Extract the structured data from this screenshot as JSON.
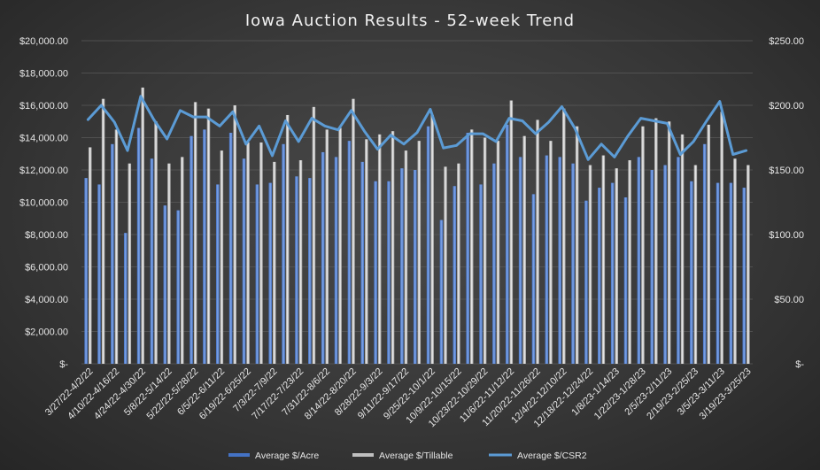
{
  "chart_data": {
    "type": "bar",
    "title": "Iowa Auction Results - 52-week Trend",
    "xlabel": "",
    "ylabel": "",
    "y_left": {
      "range": [
        0,
        20000
      ],
      "tick_values": [
        0,
        2000,
        4000,
        6000,
        8000,
        10000,
        12000,
        14000,
        16000,
        18000,
        20000
      ],
      "tick_labels": [
        "$-",
        "$2,000.00",
        "$4,000.00",
        "$6,000.00",
        "$8,000.00",
        "$10,000.00",
        "$12,000.00",
        "$14,000.00",
        "$16,000.00",
        "$18,000.00",
        "$20,000.00"
      ]
    },
    "y_right": {
      "range": [
        0,
        250
      ],
      "tick_values": [
        0,
        50,
        100,
        150,
        200,
        250
      ],
      "tick_labels": [
        "$-",
        "$50.00",
        "$100.00",
        "$150.00",
        "$200.00",
        "$250.00"
      ]
    },
    "grid": true,
    "legend_position": "bottom",
    "x_labels": [
      "3/27/22-4/2/22",
      "4/10/22-4/16/22",
      "4/24/22-4/30/22",
      "5/8/22-5/14/22",
      "5/22/22-5/28/22",
      "6/5/22-6/11/22",
      "6/19/22-6/25/22",
      "7/3/22-7/9/22",
      "7/17/22-7/23/22",
      "7/31/22-8/6/22",
      "8/14/22-8/20/22",
      "8/28/22-9/3/22",
      "9/11/22-9/17/22",
      "9/25/22-10/1/22",
      "10/9/22-10/15/22",
      "10/23/22-10/29/22",
      "11/6/22-11/12/22",
      "11/20/22-11/26/22",
      "12/4/22-12/10/22",
      "12/18/22-12/24/22",
      "1/8/23-1/14/23",
      "1/22/23-1/28/23",
      "2/5/23-2/11/23",
      "2/19/23-2/25/23",
      "3/5/23-3/11/23",
      "3/19/23-3/25/23"
    ],
    "colors": {
      "acre": "#4472c4",
      "tillable": "#bfbfbf",
      "csr2": "#5b9bd5"
    },
    "series": [
      {
        "name": "Average $/Acre",
        "type": "bar",
        "axis": "left",
        "values": [
          11500,
          11100,
          13600,
          8100,
          14600,
          12700,
          9800,
          9500,
          14100,
          14500,
          11100,
          14300,
          12700,
          11100,
          11200,
          13600,
          11600,
          11500,
          13100,
          12800,
          13800,
          12500,
          11300,
          11300,
          12100,
          12000,
          14700,
          8900,
          11000,
          14300,
          11100,
          12400,
          14800,
          12800,
          10500,
          12900,
          12800,
          12400,
          10100,
          10900,
          11200,
          10300,
          12800,
          12000,
          12300,
          12800,
          11300,
          13600,
          11200,
          11200,
          10900
        ]
      },
      {
        "name": "Average $/Tillable",
        "type": "bar",
        "axis": "left",
        "values": [
          13400,
          16400,
          14500,
          12400,
          17100,
          15000,
          12400,
          12800,
          16200,
          15800,
          13200,
          16000,
          13700,
          13700,
          12500,
          15400,
          12600,
          15900,
          14500,
          14600,
          16400,
          13900,
          14200,
          14400,
          13200,
          13800,
          15400,
          12200,
          12400,
          14500,
          14000,
          13800,
          16300,
          14100,
          15100,
          13800,
          15800,
          14700,
          12300,
          12900,
          12100,
          12600,
          14700,
          15200,
          15000,
          14200,
          12300,
          14800,
          15600,
          12700,
          12300
        ]
      },
      {
        "name": "Average $/CSR2",
        "type": "line",
        "axis": "right",
        "values": [
          189,
          200,
          187,
          165,
          207,
          189,
          174,
          196,
          191,
          191,
          184,
          195,
          170,
          184,
          161,
          188,
          172,
          190,
          184,
          181,
          196,
          180,
          166,
          177,
          170,
          179,
          197,
          167,
          169,
          178,
          178,
          172,
          190,
          188,
          178,
          187,
          199,
          182,
          158,
          170,
          160,
          176,
          190,
          188,
          186,
          162,
          172,
          188,
          203,
          162,
          165
        ]
      }
    ]
  }
}
